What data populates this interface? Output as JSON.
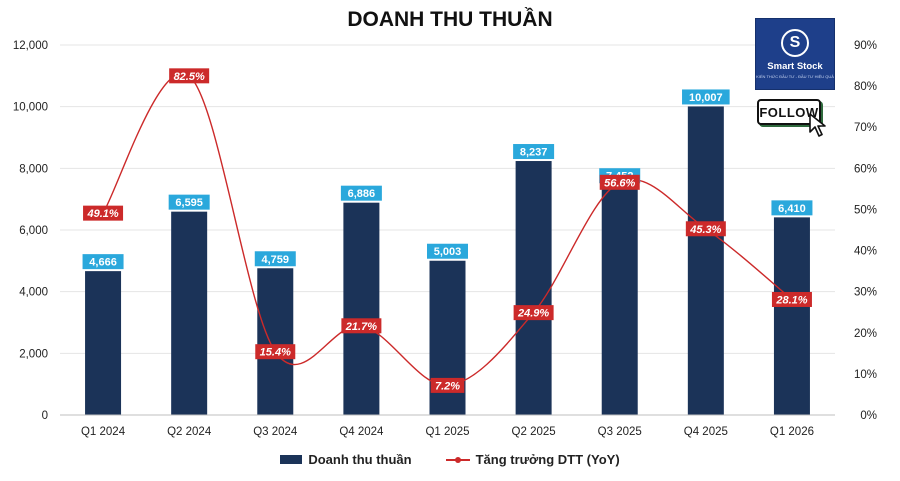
{
  "chart_data": {
    "type": "bar",
    "title": "DOANH THU THUẦN",
    "categories": [
      "Q1 2024",
      "Q2 2024",
      "Q3 2024",
      "Q4 2024",
      "Q1 2025",
      "Q2 2025",
      "Q3 2025",
      "Q4 2025",
      "Q1 2026"
    ],
    "series": [
      {
        "name": "Doanh thu thuần",
        "type": "bar",
        "axis": "left",
        "values": [
          4666,
          6595,
          4759,
          6886,
          5003,
          8237,
          7452,
          10007,
          6410
        ],
        "labels": [
          "4,666",
          "6,595",
          "4,759",
          "6,886",
          "5,003",
          "8,237",
          "7,452",
          "10,007",
          "6,410"
        ]
      },
      {
        "name": "Tăng trưởng DTT (YoY)",
        "type": "line",
        "axis": "right",
        "values": [
          49.1,
          82.5,
          15.4,
          21.7,
          7.2,
          24.9,
          56.6,
          45.3,
          28.1
        ],
        "labels": [
          "49.1%",
          "82.5%",
          "15.4%",
          "21.7%",
          "7.2%",
          "24.9%",
          "56.6%",
          "45.3%",
          "28.1%"
        ]
      }
    ],
    "ylim": [
      0,
      12000
    ],
    "yticks": [
      "0",
      "2,000",
      "4,000",
      "6,000",
      "8,000",
      "10,000",
      "12,000"
    ],
    "y2lim": [
      0,
      90
    ],
    "y2ticks": [
      "0%",
      "10%",
      "20%",
      "30%",
      "40%",
      "50%",
      "60%",
      "70%",
      "80%",
      "90%"
    ],
    "grid": true,
    "legend_position": "bottom",
    "colors": {
      "bar": "#1b3358",
      "bar_label_bg": "#2aa8dc",
      "line": "#cc2a2a",
      "line_label_bg": "#cc2a2a",
      "grid": "#e4e4e4"
    }
  },
  "logo": {
    "name": "Smart Stock",
    "subtext": "KIẾN THỨC ĐẦU TƯ - ĐẦU TƯ HIỆU QUẢ",
    "mark": "S"
  },
  "follow_label": "FOLLOW"
}
